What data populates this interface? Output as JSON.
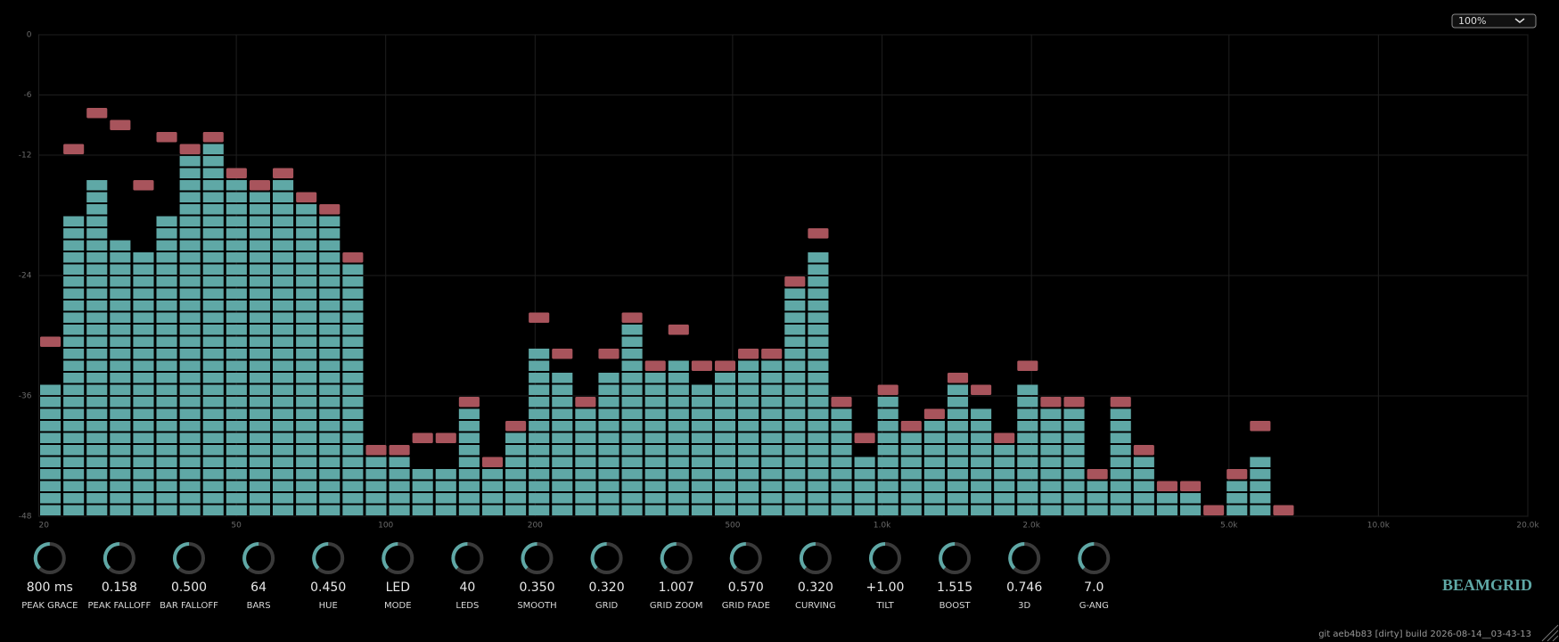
{
  "zoom": "100%",
  "chart_data": {
    "type": "bar",
    "x_scale": "log",
    "xlim": [
      20,
      20000
    ],
    "xticks": [
      20,
      50,
      100,
      200,
      500,
      {
        "value": 1000,
        "label": "1.0k"
      },
      {
        "value": 2000,
        "label": "2.0k"
      },
      {
        "value": 5000,
        "label": "5.0k"
      },
      {
        "value": 10000,
        "label": "10.0k"
      },
      {
        "value": 20000,
        "label": "20.0k"
      }
    ],
    "ylim": [
      -48,
      0
    ],
    "yticks": [
      0,
      -6,
      -12,
      -24,
      -36,
      -48
    ],
    "grid": true,
    "color": "#5fa8a6",
    "peak_color": "#a8545c",
    "values": [
      -34.8,
      -18,
      -14.4,
      -20.4,
      -21.6,
      -18,
      -12,
      -10.8,
      -14.4,
      -15.6,
      -14.4,
      -16.8,
      -18,
      -22.8,
      -42,
      -42,
      -43.2,
      -43.2,
      -37.2,
      -43.2,
      -39.6,
      -31.2,
      -33.6,
      -37.2,
      -33.6,
      -28.8,
      -33.6,
      -32.4,
      -34.8,
      -33.6,
      -32.4,
      -32.4,
      -25.2,
      -21.6,
      -37.2,
      -42,
      -36,
      -39.6,
      -38.4,
      -34.8,
      -37.2,
      -40.8,
      -34.8,
      -37.2,
      -37.2,
      -44.4,
      -37.2,
      -42,
      -45.6,
      -45.6,
      -48,
      -44.4,
      -42,
      -48,
      -48,
      -48,
      -48,
      -48,
      -48,
      -48,
      -48,
      -48,
      -48,
      -48
    ],
    "peak_values": [
      -30,
      -10.8,
      -7.2,
      -8.4,
      -14.4,
      -9.6,
      -10.8,
      -9.6,
      -13.2,
      -14.4,
      -13.2,
      -15.6,
      -16.8,
      -21.6,
      -40.8,
      -40.8,
      -39.6,
      -39.6,
      -36,
      -42,
      -38.4,
      -27.6,
      -31.2,
      -36,
      -31.2,
      -27.6,
      -32.4,
      -28.8,
      -32.4,
      -32.4,
      -31.2,
      -31.2,
      -24,
      -19.2,
      -36,
      -39.6,
      -34.8,
      -38.4,
      -37.2,
      -33.6,
      -34.8,
      -39.6,
      -32.4,
      -36,
      -36,
      -43.2,
      -36,
      -40.8,
      -44.4,
      -44.4,
      -46.8,
      -43.2,
      -38.4,
      -46.8,
      null,
      null,
      null,
      null,
      null,
      null,
      null,
      null,
      null,
      null
    ]
  },
  "controls": [
    {
      "value": "800 ms",
      "label": "PEAK GRACE"
    },
    {
      "value": "0.158",
      "label": "PEAK FALLOFF"
    },
    {
      "value": "0.500",
      "label": "BAR FALLOFF"
    },
    {
      "value": "64",
      "label": "BARS"
    },
    {
      "value": "0.450",
      "label": "HUE"
    },
    {
      "value": "LED",
      "label": "MODE"
    },
    {
      "value": "40",
      "label": "LEDS"
    },
    {
      "value": "0.350",
      "label": "SMOOTH"
    },
    {
      "value": "0.320",
      "label": "GRID"
    },
    {
      "value": "1.007",
      "label": "GRID ZOOM"
    },
    {
      "value": "0.570",
      "label": "GRID FADE"
    },
    {
      "value": "0.320",
      "label": "CURVING"
    },
    {
      "value": "+1.00",
      "label": "TILT"
    },
    {
      "value": "1.515",
      "label": "BOOST"
    },
    {
      "value": "0.746",
      "label": "3D"
    },
    {
      "value": "7.0",
      "label": "G-ANG"
    }
  ],
  "brand": "BEAMGRID",
  "footer": "git aeb4b83  [dirty]  build 2026-08-14__03-43-13"
}
